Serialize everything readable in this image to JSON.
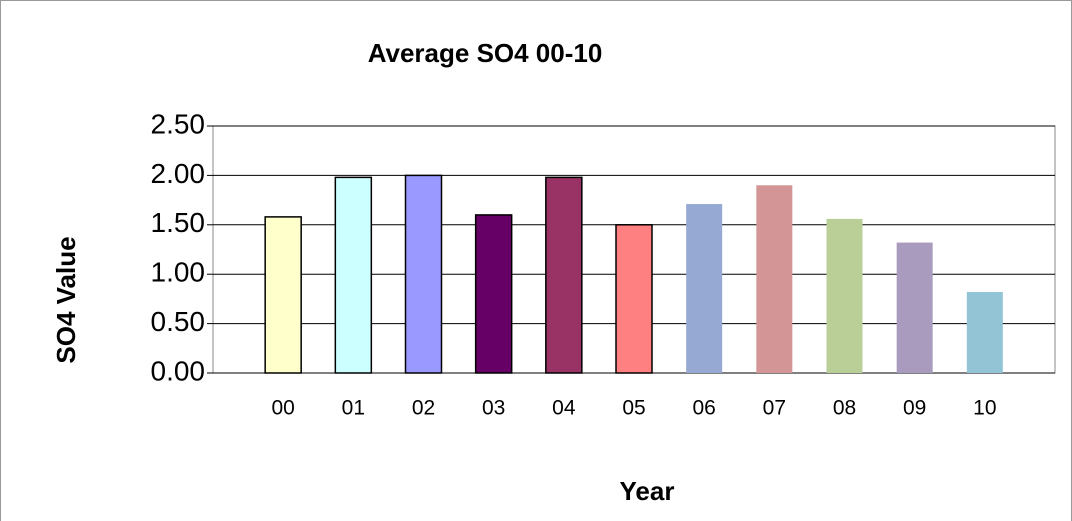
{
  "chart_data": {
    "type": "bar",
    "title": "Average SO4 00-10",
    "x_label": "Year",
    "y_label": "SO4 Value",
    "categories": [
      "00",
      "01",
      "02",
      "03",
      "04",
      "05",
      "06",
      "07",
      "08",
      "09",
      "10"
    ],
    "values": [
      1.58,
      1.98,
      2.0,
      1.6,
      1.98,
      1.5,
      1.71,
      1.9,
      1.56,
      1.32,
      0.82
    ],
    "colors": [
      "#ffffcc",
      "#ccffff",
      "#9999ff",
      "#660066",
      "#993366",
      "#ff8080",
      "#95a9d2",
      "#d39595",
      "#b9cf97",
      "#a99bbd",
      "#92c4d6"
    ],
    "edgecolors": [
      "#000000",
      "#000000",
      "#000000",
      "#000000",
      "#000000",
      "#000000",
      "none",
      "none",
      "none",
      "none",
      "none"
    ],
    "ylim": [
      0,
      2.5
    ],
    "yticks": [
      {
        "value": 0,
        "label": "0.00"
      },
      {
        "value": 0.5,
        "label": "0.50"
      },
      {
        "value": 1,
        "label": "1.00"
      },
      {
        "value": 1.5,
        "label": "1.50"
      },
      {
        "value": 2,
        "label": "2.00"
      },
      {
        "value": 2.5,
        "label": "2.50"
      }
    ],
    "grid": true
  }
}
